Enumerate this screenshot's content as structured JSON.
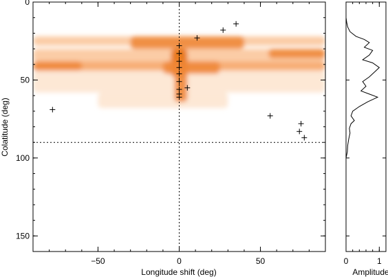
{
  "chart_data": [
    {
      "type": "heatmap",
      "title": "",
      "xlabel": "Longitude shift (deg)",
      "ylabel": "Colatitude (deg)",
      "xlim": [
        -90,
        90
      ],
      "ylim": [
        0,
        160
      ],
      "y_inverted": true,
      "xticks": [
        -50,
        0,
        50
      ],
      "yticks": [
        0,
        50,
        100,
        150
      ],
      "colormap": [
        "#ffffff",
        "#fde6d0",
        "#fbc79c",
        "#f6a567",
        "#ef8838",
        "#e8720f"
      ],
      "reference_lines": {
        "vertical_x": 0,
        "horizontal_y": 90,
        "style": "dotted"
      },
      "bands": [
        {
          "colatitude": [
            22,
            28
          ],
          "longitude": [
            -90,
            90
          ],
          "level": 2
        },
        {
          "colatitude": [
            30,
            38
          ],
          "longitude": [
            -90,
            90
          ],
          "level": 2
        },
        {
          "colatitude": [
            38,
            44
          ],
          "longitude": [
            -90,
            90
          ],
          "level": 3
        },
        {
          "colatitude": [
            44,
            58
          ],
          "longitude": [
            -90,
            90
          ],
          "level": 1
        },
        {
          "colatitude": [
            58,
            68
          ],
          "longitude": [
            -50,
            30
          ],
          "level": 1
        },
        {
          "colatitude": [
            22,
            30
          ],
          "longitude": [
            -30,
            40
          ],
          "level": 4
        },
        {
          "colatitude": [
            30,
            48
          ],
          "longitude": [
            -5,
            5
          ],
          "level": 5
        },
        {
          "colatitude": [
            38,
            46
          ],
          "longitude": [
            -10,
            25
          ],
          "level": 4
        },
        {
          "colatitude": [
            38,
            44
          ],
          "longitude": [
            -90,
            -60
          ],
          "level": 4
        },
        {
          "colatitude": [
            30,
            36
          ],
          "longitude": [
            55,
            90
          ],
          "level": 4
        },
        {
          "colatitude": [
            44,
            64
          ],
          "longitude": [
            -3,
            5
          ],
          "level": 4
        }
      ],
      "markers": [
        {
          "x": 35,
          "y": 14
        },
        {
          "x": 27,
          "y": 18
        },
        {
          "x": 11,
          "y": 23
        },
        {
          "x": 0,
          "y": 28
        },
        {
          "x": 0,
          "y": 33
        },
        {
          "x": 0,
          "y": 38
        },
        {
          "x": 0,
          "y": 42
        },
        {
          "x": 0,
          "y": 46
        },
        {
          "x": 0,
          "y": 51
        },
        {
          "x": 0,
          "y": 56
        },
        {
          "x": 5,
          "y": 55
        },
        {
          "x": 0,
          "y": 59
        },
        {
          "x": 0,
          "y": 61
        },
        {
          "x": -78,
          "y": 69
        },
        {
          "x": 56,
          "y": 73
        },
        {
          "x": 75,
          "y": 78
        },
        {
          "x": 74,
          "y": 83
        },
        {
          "x": 77,
          "y": 87
        }
      ]
    },
    {
      "type": "line",
      "title": "",
      "xlabel": "Amplitude",
      "ylabel": "",
      "xlim": [
        0,
        1.2
      ],
      "ylim": [
        0,
        160
      ],
      "y_inverted": true,
      "xticks": [
        0,
        1
      ],
      "series": [
        {
          "points": [
            [
              0,
              0
            ],
            [
              0.0,
              10
            ],
            [
              0.02,
              13
            ],
            [
              0.05,
              16
            ],
            [
              0.12,
              19
            ],
            [
              0.3,
              22
            ],
            [
              0.55,
              24
            ],
            [
              0.7,
              26
            ],
            [
              0.55,
              29
            ],
            [
              0.8,
              31
            ],
            [
              0.7,
              34
            ],
            [
              0.5,
              37
            ],
            [
              0.8,
              39
            ],
            [
              1.0,
              42
            ],
            [
              0.85,
              45
            ],
            [
              0.7,
              48
            ],
            [
              0.5,
              51
            ],
            [
              0.6,
              54
            ],
            [
              0.45,
              57
            ],
            [
              0.7,
              59
            ],
            [
              0.95,
              61
            ],
            [
              0.65,
              64
            ],
            [
              0.4,
              67
            ],
            [
              0.2,
              70
            ],
            [
              0.15,
              73
            ],
            [
              0.25,
              76
            ],
            [
              0.15,
              78
            ],
            [
              0.1,
              81
            ],
            [
              0.12,
              84
            ],
            [
              0.08,
              88
            ],
            [
              0.05,
              92
            ],
            [
              0.04,
              96
            ],
            [
              0.0,
              100
            ],
            [
              0,
              160
            ]
          ]
        }
      ]
    }
  ]
}
